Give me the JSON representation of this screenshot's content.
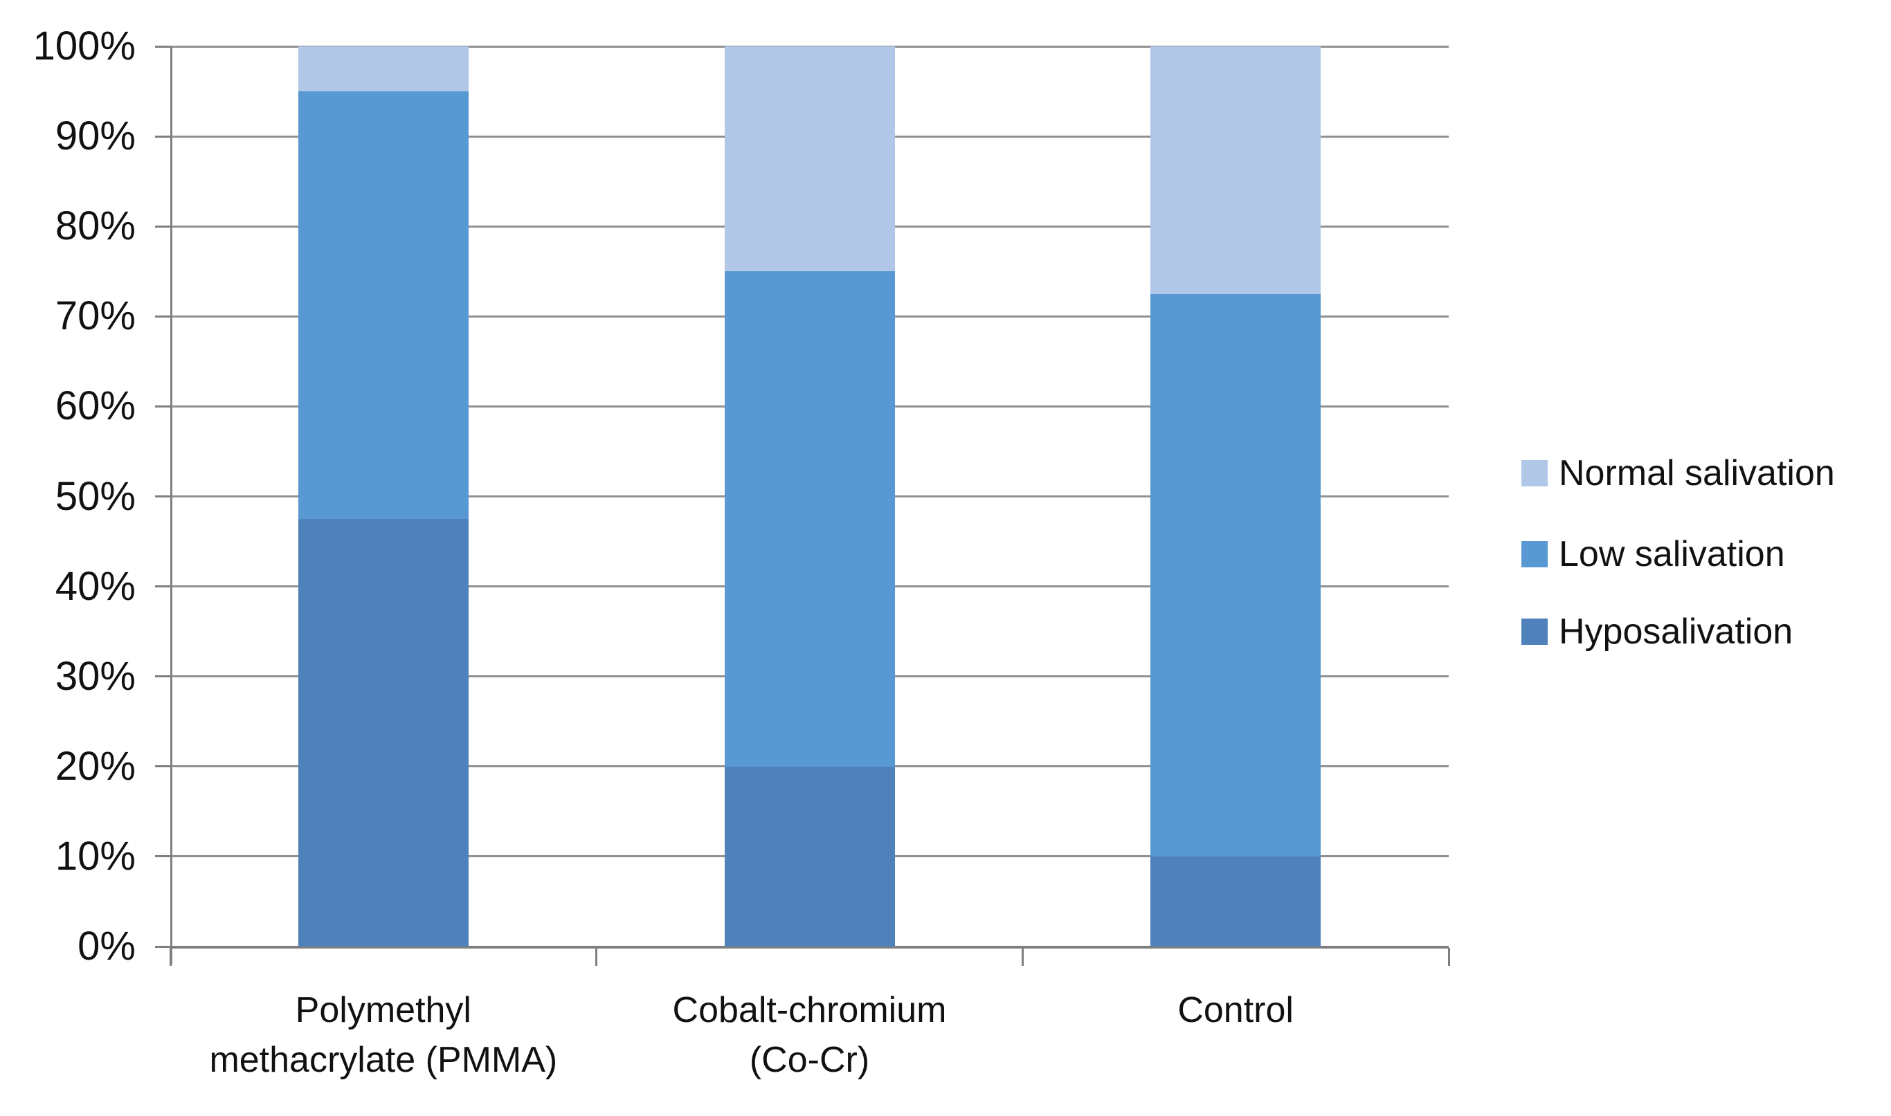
{
  "chart_data": {
    "type": "bar",
    "variant": "stacked-column-100",
    "title": "",
    "xlabel": "",
    "ylabel": "",
    "categories": [
      "Polymethyl methacrylate (PMMA)",
      "Cobalt-chromium (Co-Cr)",
      "Control"
    ],
    "category_lines": [
      [
        "Polymethyl",
        "methacrylate (PMMA)"
      ],
      [
        "Cobalt-chromium",
        "(Co-Cr)"
      ],
      [
        "Control"
      ]
    ],
    "series": [
      {
        "name": "Hyposalivation",
        "color": "#4F81BB",
        "values": [
          47.5,
          20,
          10
        ]
      },
      {
        "name": "Low salivation",
        "color": "#5899D3",
        "values": [
          47.5,
          55,
          62.5
        ]
      },
      {
        "name": "Normal salivation",
        "color": "#B0C7E8",
        "values": [
          5,
          25,
          27.5
        ]
      }
    ],
    "y_axis": {
      "min": 0,
      "max": 100,
      "step": 10,
      "unit": "%",
      "tick_labels": [
        "0%",
        "10%",
        "20%",
        "30%",
        "40%",
        "50%",
        "60%",
        "70%",
        "80%",
        "90%",
        "100%"
      ]
    },
    "legend": {
      "position": "right",
      "items": [
        {
          "label": "Normal salivation",
          "color": "#B0C7E8"
        },
        {
          "label": "Low salivation",
          "color": "#5899D3"
        },
        {
          "label": "Hyposalivation",
          "color": "#4F81BB"
        }
      ]
    },
    "grid": true,
    "colors": {
      "gridline": "#909090",
      "axis": "#7f7f7f",
      "text": "#111111",
      "background": "#ffffff"
    }
  }
}
